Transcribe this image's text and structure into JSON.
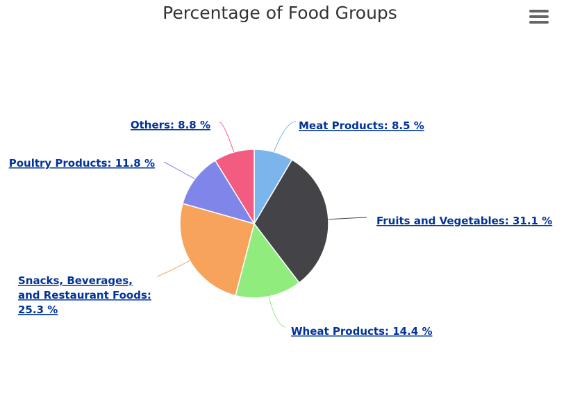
{
  "chart_data": {
    "type": "pie",
    "title": "Percentage of Food Groups",
    "slices": [
      {
        "name": "Meat Products",
        "value": 8.5,
        "color": "#7cb5ec",
        "label": "Meat Products: 8.5 %"
      },
      {
        "name": "Fruits and Vegetables",
        "value": 31.1,
        "color": "#434348",
        "label": "Fruits and Vegetables: 31.1 %"
      },
      {
        "name": "Wheat Products",
        "value": 14.4,
        "color": "#90ed7d",
        "label": "Wheat Products: 14.4 %"
      },
      {
        "name": "Snacks, Beverages, and Restaurant Foods",
        "value": 25.3,
        "color": "#f7a35c",
        "label_lines": [
          "Snacks, Beverages,",
          "and Restaurant Foods:",
          "25.3 %"
        ]
      },
      {
        "name": "Poultry Products",
        "value": 11.8,
        "color": "#8085e9",
        "label": "Poultry Products: 11.8 %"
      },
      {
        "name": "Others",
        "value": 8.8,
        "color": "#f15c80",
        "label": "Others: 8.8 %"
      }
    ]
  },
  "menu": {
    "icon": "hamburger-menu-icon"
  }
}
